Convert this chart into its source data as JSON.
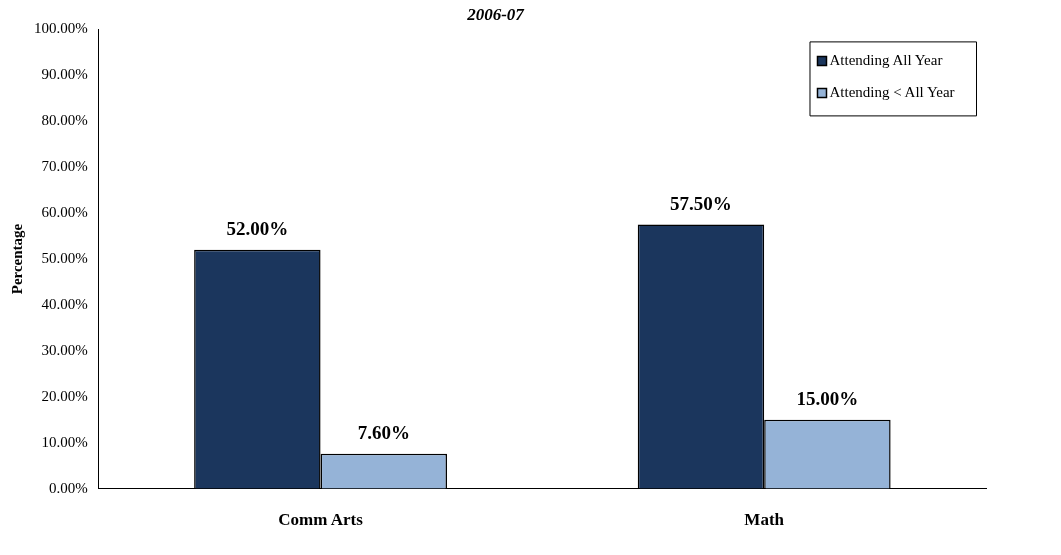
{
  "chart_data": {
    "type": "bar",
    "title": "2006-07",
    "ylabel": "Percentage",
    "categories": [
      "Comm Arts",
      "Math"
    ],
    "series": [
      {
        "name": "Attending All Year",
        "color": "#1b365d",
        "values": [
          52,
          57.5
        ],
        "value_labels": [
          "52.00%",
          "57.50%"
        ]
      },
      {
        "name": "Attending < All Year",
        "color": "#95b3d7",
        "values": [
          7.6,
          15
        ],
        "value_labels": [
          "7.60%",
          "15.00%"
        ]
      }
    ],
    "ylim": [
      0,
      100
    ],
    "yticks": [
      {
        "value": 0,
        "label": "0.00%"
      },
      {
        "value": 10,
        "label": "10.00%"
      },
      {
        "value": 20,
        "label": "20.00%"
      },
      {
        "value": 30,
        "label": "30.00%"
      },
      {
        "value": 40,
        "label": "40.00%"
      },
      {
        "value": 50,
        "label": "50.00%"
      },
      {
        "value": 60,
        "label": "60.00%"
      },
      {
        "value": 70,
        "label": "70.00%"
      },
      {
        "value": 80,
        "label": "80.00%"
      },
      {
        "value": 90,
        "label": "90.00%"
      },
      {
        "value": 100,
        "label": "100.00%"
      }
    ],
    "grid": false,
    "legend": "top right"
  }
}
